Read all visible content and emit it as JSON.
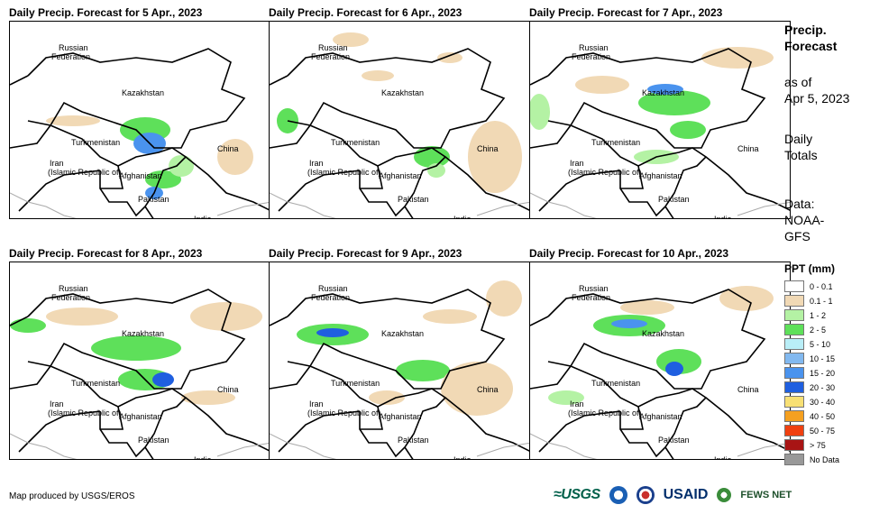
{
  "panels": [
    {
      "title": "Daily Precip. Forecast for 5 Apr., 2023"
    },
    {
      "title": "Daily Precip. Forecast for 6 Apr., 2023"
    },
    {
      "title": "Daily Precip. Forecast for 7 Apr., 2023"
    },
    {
      "title": "Daily Precip. Forecast for 8 Apr., 2023"
    },
    {
      "title": "Daily Precip. Forecast for 9 Apr., 2023"
    },
    {
      "title": "Daily Precip. Forecast for 10 Apr., 2023"
    }
  ],
  "map_labels": {
    "russia_1": "Russian",
    "russia_2": "Federation",
    "kazakhstan": "Kazakhstan",
    "turkmenistan": "Turkmenistan",
    "iran_1": "Iran",
    "iran_2": "(Islamic Republic of)",
    "afghanistan": "Afghanistan",
    "pakistan": "Pakistan",
    "china": "China",
    "india": "India"
  },
  "side": {
    "title_1": "Precip.",
    "title_2": "Forecast",
    "asof_1": "as of",
    "asof_2": "Apr 5, 2023",
    "totals_1": "Daily",
    "totals_2": "Totals",
    "data_1": "Data:",
    "data_2": "NOAA-",
    "data_3": "GFS"
  },
  "legend": {
    "title": "PPT (mm)",
    "items": [
      {
        "label": "0 - 0.1",
        "color": "#ffffff"
      },
      {
        "label": "0.1 - 1",
        "color": "#f1d9b5"
      },
      {
        "label": "1 - 2",
        "color": "#b4f2a4"
      },
      {
        "label": "2 - 5",
        "color": "#5ee05a"
      },
      {
        "label": "5 - 10",
        "color": "#b9eef7"
      },
      {
        "label": "10 - 15",
        "color": "#82b9f0"
      },
      {
        "label": "15 - 20",
        "color": "#4a93ee"
      },
      {
        "label": "20 - 30",
        "color": "#1f5fe0"
      },
      {
        "label": "30 - 40",
        "color": "#f8e074"
      },
      {
        "label": "40 - 50",
        "color": "#f5a020"
      },
      {
        "label": "50 - 75",
        "color": "#f04010"
      },
      {
        "label": "> 75",
        "color": "#a81414"
      },
      {
        "label": "No Data",
        "color": "#999999"
      }
    ]
  },
  "footer": "Map produced by USGS/EROS",
  "logos": {
    "usgs": "≈USGS",
    "usaid": "USAID",
    "fews": "FEWS NET"
  }
}
